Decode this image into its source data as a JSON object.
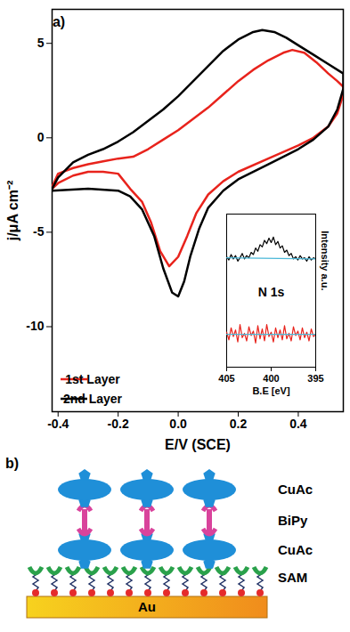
{
  "chart_data": [
    {
      "type": "line",
      "panel": "a)",
      "x_label": "E/V (SCE)",
      "y_label": "j/μA cm⁻²",
      "xlim": [
        -0.42,
        0.55
      ],
      "ylim": [
        -14.5,
        6.8
      ],
      "xticks": [
        -0.4,
        -0.2,
        {
          "value": 0,
          "label": "0.0"
        },
        0.2,
        0.4
      ],
      "yticks": [
        -10,
        -5,
        0,
        5
      ],
      "legend": "bottom-left",
      "series": [
        {
          "name": "1st Layer",
          "color": "#e8231c",
          "line_style": "solid",
          "x": [
            -0.42,
            -0.4,
            -0.35,
            -0.3,
            -0.25,
            -0.2,
            -0.15,
            -0.1,
            -0.05,
            0,
            0.05,
            0.1,
            0.15,
            0.2,
            0.25,
            0.3,
            0.35,
            0.38,
            0.42,
            0.46,
            0.5,
            0.53,
            0.55,
            0.55,
            0.53,
            0.5,
            0.45,
            0.4,
            0.3,
            0.2,
            0.15,
            0.1,
            0.06,
            0.03,
            0,
            -0.03,
            -0.06,
            -0.09,
            -0.12,
            -0.16,
            -0.2,
            -0.25,
            -0.3,
            -0.35,
            -0.4,
            -0.42
          ],
          "values": [
            -2.6,
            -1.9,
            -1.6,
            -1.4,
            -1.25,
            -1.1,
            -1.0,
            -0.6,
            -0.1,
            0.4,
            1.0,
            1.6,
            2.3,
            3.0,
            3.6,
            4.1,
            4.5,
            4.65,
            4.5,
            4.0,
            3.4,
            3.0,
            2.7,
            2.3,
            1.3,
            0.6,
            0.0,
            -0.4,
            -1.1,
            -1.8,
            -2.3,
            -3.0,
            -4.0,
            -5.2,
            -6.3,
            -6.8,
            -6.0,
            -4.5,
            -3.4,
            -2.7,
            -1.9,
            -1.8,
            -1.8,
            -2.0,
            -2.4,
            -2.7
          ]
        },
        {
          "name": "2nd Layer",
          "color": "#000000",
          "line_style": "solid",
          "x": [
            -0.42,
            -0.4,
            -0.35,
            -0.3,
            -0.25,
            -0.2,
            -0.15,
            -0.1,
            -0.05,
            0,
            0.05,
            0.1,
            0.15,
            0.2,
            0.25,
            0.28,
            0.32,
            0.36,
            0.4,
            0.45,
            0.5,
            0.55,
            0.55,
            0.53,
            0.5,
            0.45,
            0.4,
            0.3,
            0.2,
            0.15,
            0.1,
            0.07,
            0.04,
            0.02,
            0,
            -0.02,
            -0.05,
            -0.08,
            -0.12,
            -0.16,
            -0.2,
            -0.3,
            -0.42
          ],
          "values": [
            -2.7,
            -2.1,
            -1.3,
            -0.9,
            -0.6,
            -0.2,
            0.3,
            0.9,
            1.5,
            2.2,
            3.0,
            3.8,
            4.6,
            5.2,
            5.6,
            5.7,
            5.6,
            5.3,
            4.9,
            4.4,
            3.9,
            3.4,
            2.6,
            1.5,
            0.6,
            -0.1,
            -0.6,
            -1.4,
            -2.2,
            -2.8,
            -3.7,
            -4.8,
            -6.3,
            -7.6,
            -8.4,
            -8.2,
            -6.9,
            -5.2,
            -3.8,
            -3.1,
            -2.8,
            -2.7,
            -2.8
          ]
        }
      ]
    },
    {
      "type": "line",
      "x_label": "B.E [eV]",
      "y_label": "Intensity a.u.",
      "annotations": [
        "N 1s"
      ],
      "xlim": [
        405,
        395
      ],
      "ylim": [
        0,
        14
      ],
      "xticks": [
        405,
        400,
        395
      ],
      "tick_labels": "x",
      "x": [
        405,
        404.75,
        404.5,
        404.25,
        404,
        403.75,
        403.5,
        403.25,
        403,
        402.75,
        402.5,
        402.25,
        402,
        401.75,
        401.5,
        401.25,
        401,
        400.75,
        400.5,
        400.25,
        400,
        399.75,
        399.5,
        399.25,
        399,
        398.75,
        398.5,
        398.25,
        398,
        397.75,
        397.5,
        397.25,
        397,
        396.75,
        396.5,
        396.25,
        396,
        395.75,
        395.5,
        395.25,
        395
      ],
      "series": [
        {
          "color": "#000000",
          "line_style": "solid",
          "values": [
            10.1,
            9.8,
            10.3,
            9.9,
            10.2,
            9.7,
            10.0,
            10.4,
            9.9,
            10.2,
            10.0,
            10.5,
            10.3,
            10.9,
            10.6,
            11.2,
            11.0,
            11.6,
            11.3,
            11.8,
            11.4,
            11.9,
            11.2,
            11.5,
            10.9,
            11.1,
            10.5,
            10.7,
            10.2,
            10.4,
            9.9,
            10.1,
            9.8,
            10.2,
            9.9,
            10.0,
            9.7,
            10.1,
            9.8,
            10.0,
            9.9
          ]
        },
        {
          "color": "#4bb8d8",
          "line_style": "solid",
          "x": [
            405,
            395
          ],
          "values": [
            10.0,
            9.9
          ]
        },
        {
          "color": "#e8231c",
          "line_style": "solid",
          "values": [
            3.2,
            2.5,
            3.6,
            2.8,
            3.4,
            2.3,
            3.9,
            2.7,
            3.1,
            2.4,
            3.7,
            2.9,
            3.3,
            2.2,
            3.8,
            2.6,
            3.5,
            2.4,
            3.9,
            2.8,
            3.2,
            2.3,
            3.6,
            2.7,
            3.4,
            2.5,
            3.8,
            2.6,
            3.1,
            2.4,
            3.7,
            2.9,
            3.3,
            2.5,
            3.6,
            2.7,
            3.2,
            2.4,
            3.5,
            2.8,
            3.0
          ]
        },
        {
          "color": "#4bb8d8",
          "line_style": "solid",
          "x": [
            405,
            395
          ],
          "values": [
            3.0,
            3.0
          ]
        }
      ]
    }
  ],
  "diagram": {
    "panel": "b)",
    "layers": [
      "CuAc",
      "BiPy",
      "CuAc",
      "SAM",
      "Au"
    ]
  }
}
